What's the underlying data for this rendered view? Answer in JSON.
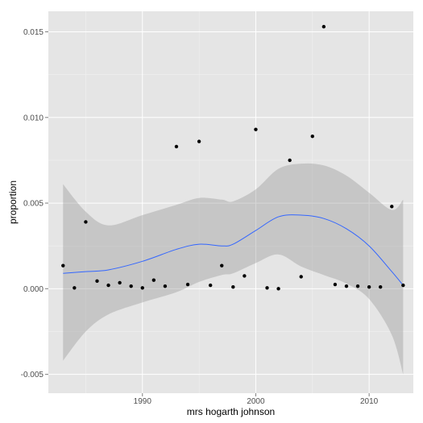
{
  "chart_data": {
    "type": "scatter",
    "xlabel": "mrs hogarth johnson",
    "ylabel": "proportion",
    "xlim": [
      1981.7,
      2013.9
    ],
    "ylim": [
      -0.0061,
      0.0162
    ],
    "x_ticks": [
      {
        "value": 1990,
        "label": "1990"
      },
      {
        "value": 2000,
        "label": "2000"
      },
      {
        "value": 2010,
        "label": "2010"
      }
    ],
    "y_ticks": [
      {
        "value": -0.005,
        "label": "-0.005"
      },
      {
        "value": 0.0,
        "label": "0.000"
      },
      {
        "value": 0.005,
        "label": "0.005"
      },
      {
        "value": 0.01,
        "label": "0.010"
      },
      {
        "value": 0.015,
        "label": "0.015"
      }
    ],
    "grid": true,
    "colors": {
      "panel_background": "#e5e5e5",
      "grid_major": "#ffffff",
      "grid_minor": "#f2f2f2",
      "points": "#000000",
      "smooth_line": "#3366ff",
      "confidence_band": "#999999"
    },
    "points": {
      "x": [
        1983,
        1984,
        1985,
        1986,
        1987,
        1988,
        1989,
        1990,
        1991,
        1992,
        1993,
        1994,
        1995,
        1996,
        1997,
        1998,
        1999,
        2000,
        2001,
        2002,
        2003,
        2004,
        2005,
        2006,
        2007,
        2008,
        2009,
        2010,
        2011,
        2012,
        2013
      ],
      "y": [
        0.00135,
        5e-05,
        0.0039,
        0.00045,
        0.0002,
        0.00035,
        0.00015,
        5e-05,
        0.0005,
        0.00015,
        0.0083,
        0.00025,
        0.0086,
        0.0002,
        0.00135,
        0.0001,
        0.00075,
        0.0093,
        5e-05,
        0.0,
        0.0075,
        0.0007,
        0.0089,
        0.0153,
        0.00025,
        0.00015,
        0.00015,
        0.0001,
        0.0001,
        0.0048,
        0.0002
      ]
    },
    "smooth": {
      "x": [
        1983,
        1985,
        1987,
        1990,
        1993,
        1995,
        1997,
        1998,
        2000,
        2002,
        2004,
        2006,
        2008,
        2010,
        2012,
        2013
      ],
      "y": [
        0.0009,
        0.001,
        0.0011,
        0.0016,
        0.0023,
        0.0026,
        0.0025,
        0.0026,
        0.0034,
        0.0042,
        0.0043,
        0.0041,
        0.0035,
        0.0025,
        0.001,
        0.0002
      ],
      "ymin": [
        -0.0042,
        -0.0025,
        -0.0015,
        -0.0008,
        -0.0002,
        0.0004,
        0.0008,
        0.0009,
        0.0015,
        0.002,
        0.0013,
        0.0008,
        0.0003,
        -0.0006,
        -0.0027,
        -0.005
      ],
      "ymax": [
        0.0061,
        0.0045,
        0.0037,
        0.0043,
        0.0049,
        0.0053,
        0.0052,
        0.0051,
        0.0058,
        0.007,
        0.0073,
        0.0072,
        0.0066,
        0.0056,
        0.0046,
        0.0052
      ]
    }
  }
}
